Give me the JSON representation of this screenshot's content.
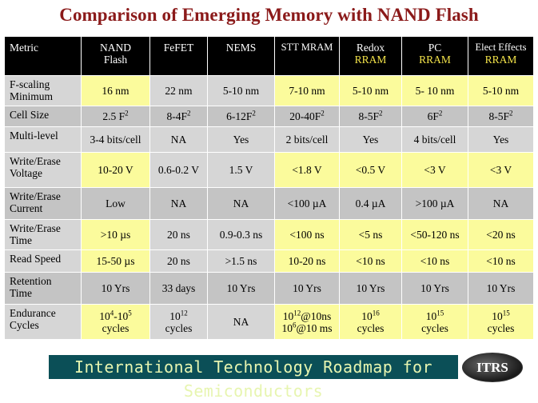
{
  "title": "Comparison of Emerging Memory with NAND Flash",
  "header": {
    "metric": "Metric",
    "nand": "NAND",
    "nand_sub": "Flash",
    "fefet": "FeFET",
    "nems": "NEMS",
    "stt": "STT MRAM",
    "redox": "Redox",
    "redox_sub": "RRAM",
    "pc": "PC",
    "pc_sub": "RRAM",
    "elect": "Elect Effects",
    "elect_sub": "RRAM"
  },
  "rows": {
    "fscaling": {
      "metric1": "F-scaling",
      "metric2": "Minimum",
      "nand": "16 nm",
      "fefet": "22 nm",
      "nems": "5-10 nm",
      "stt": "7-10 nm",
      "redox": "5-10 nm",
      "pc": "5- 10 nm",
      "elect": "5-10 nm"
    },
    "cellsize": {
      "metric1": "Cell Size",
      "nand": "2.5 F",
      "fefet": "8-4F",
      "nems": "6-12F",
      "stt": "20-40F",
      "redox": "8-5F",
      "pc": "6F",
      "elect": "8-5F",
      "sup": "2"
    },
    "multilevel": {
      "metric1": "Multi-level",
      "nand": "3-4 bits/cell",
      "fefet": "NA",
      "nems": "Yes",
      "stt": "2 bits/cell",
      "redox": "Yes",
      "pc": "4 bits/cell",
      "elect": "Yes"
    },
    "wevoltage": {
      "metric1": "Write/Erase",
      "metric2": "Voltage",
      "nand": "10-20 V",
      "fefet": "0.6-0.2 V",
      "nems": "1.5 V",
      "stt": "<1.8 V",
      "redox": "<0.5 V",
      "pc": "<3 V",
      "elect": "<3 V"
    },
    "wecurrent": {
      "metric1": "Write/Erase",
      "metric2": "Current",
      "nand": "Low",
      "fefet": "NA",
      "nems": "NA",
      "stt": "<100 µA",
      "redox": "0.4 µA",
      "pc": ">100 µA",
      "elect": "NA"
    },
    "wetime": {
      "metric1": "Write/Erase",
      "metric2": "Time",
      "nand": ">10 µs",
      "fefet": "20 ns",
      "nems": "0.9-0.3 ns",
      "stt": "<100 ns",
      "redox": "<5 ns",
      "pc": "<50-120 ns",
      "elect": "<20 ns"
    },
    "readspeed": {
      "metric1": "Read Speed",
      "nand": "15-50 µs",
      "fefet": "20 ns",
      "nems": ">1.5 ns",
      "stt": "10-20 ns",
      "redox": "<10 ns",
      "pc": "<10 ns",
      "elect": "<10 ns"
    },
    "retention": {
      "metric1": "Retention",
      "metric2": "Time",
      "nand": "10 Yrs",
      "fefet": "33 days",
      "nems": "10 Yrs",
      "stt": "10 Yrs",
      "redox": "10 Yrs",
      "pc": "10 Yrs",
      "elect": "10 Yrs"
    },
    "endurance": {
      "metric1": "Endurance",
      "metric2": "Cycles",
      "cycles": "cycles",
      "nand_base1": "10",
      "nand_exp1": "4",
      "nand_mid": "-10",
      "nand_exp2": "5",
      "fefet_base": "10",
      "fefet_exp": "12",
      "nems": "NA",
      "stt_base1": "10",
      "stt_exp1": "12",
      "stt_rest1": "@10ns",
      "stt_base2": "10",
      "stt_exp2": "6",
      "stt_rest2": "@10 ms",
      "redox_base": "10",
      "redox_exp": "16",
      "pc_base": "10",
      "pc_exp": "15",
      "elect_base": "10",
      "elect_exp": "15"
    }
  },
  "footer": {
    "banner": "International Technology Roadmap for Semiconductors",
    "logo": "ITRS"
  },
  "colors": {
    "title": "#8b1a1a",
    "highlight": "#fbfb9c",
    "header_bg": "#000000",
    "header_sub": "#f4e44a",
    "banner_bg": "#0b4f57"
  }
}
